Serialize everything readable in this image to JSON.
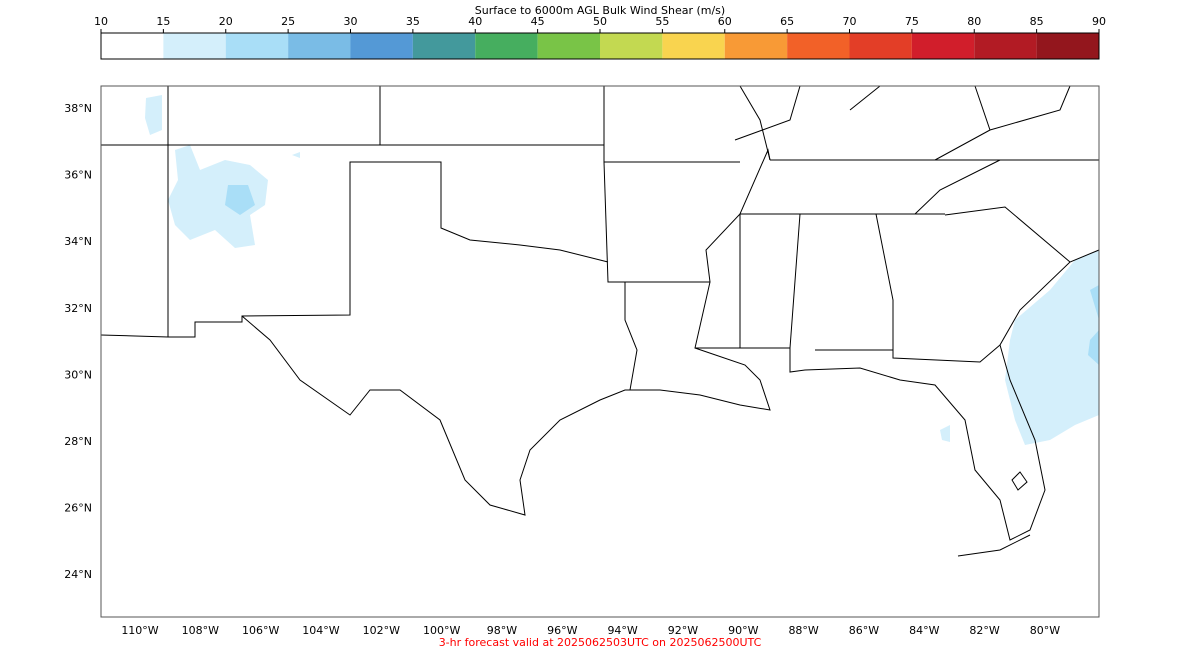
{
  "colorbar": {
    "title": "Surface to 6000m AGL Bulk Wind Shear (m/s)",
    "ticks": [
      10,
      15,
      20,
      25,
      30,
      35,
      40,
      45,
      50,
      55,
      60,
      65,
      70,
      75,
      80,
      85,
      90
    ],
    "colors": [
      "#ffffff",
      "#d4effb",
      "#a9def7",
      "#7abce6",
      "#5499d6",
      "#43999c",
      "#46ae5f",
      "#79c447",
      "#c3d951",
      "#f9d44f",
      "#f89a36",
      "#f26128",
      "#e33e27",
      "#d11e2b",
      "#b21b24",
      "#93161d"
    ]
  },
  "map": {
    "lat_labels": [
      "38°N",
      "36°N",
      "34°N",
      "32°N",
      "30°N",
      "28°N",
      "26°N",
      "24°N"
    ],
    "lon_labels": [
      "110°W",
      "108°W",
      "106°W",
      "104°W",
      "102°W",
      "100°W",
      "98°W",
      "96°W",
      "94°W",
      "92°W",
      "90°W",
      "88°W",
      "86°W",
      "84°W",
      "82°W",
      "80°W"
    ]
  },
  "footer": "3-hr forecast valid at 2025062503UTC on 2025062500UTC"
}
